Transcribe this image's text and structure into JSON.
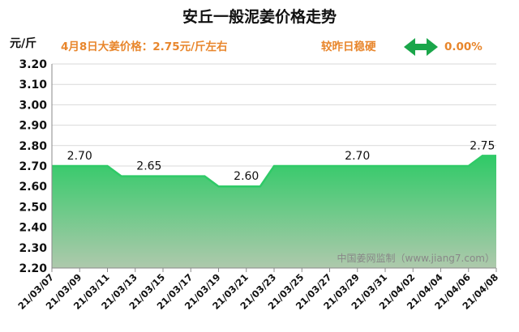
{
  "chart_data": {
    "type": "area",
    "title": "安丘一般泥姜价格走势",
    "ylabel": "元/斤",
    "xlabel": "",
    "ylim": [
      2.2,
      3.2
    ],
    "yticks": [
      "3.20",
      "3.10",
      "3.00",
      "2.90",
      "2.80",
      "2.70",
      "2.60",
      "2.50",
      "2.40",
      "2.30",
      "2.20"
    ],
    "ytick_values": [
      3.2,
      3.1,
      3.0,
      2.9,
      2.8,
      2.7,
      2.6,
      2.5,
      2.4,
      2.3,
      2.2
    ],
    "x": [
      "21/03/07",
      "21/03/08",
      "21/03/09",
      "21/03/10",
      "21/03/11",
      "21/03/12",
      "21/03/13",
      "21/03/14",
      "21/03/15",
      "21/03/16",
      "21/03/17",
      "21/03/18",
      "21/03/19",
      "21/03/20",
      "21/03/21",
      "21/03/22",
      "21/03/23",
      "21/03/24",
      "21/03/25",
      "21/03/26",
      "21/03/27",
      "21/03/28",
      "21/03/29",
      "21/03/30",
      "21/03/31",
      "21/04/01",
      "21/04/02",
      "21/04/03",
      "21/04/04",
      "21/04/05",
      "21/04/06",
      "21/04/07",
      "21/04/08"
    ],
    "xtick_labels": [
      "21/03/07",
      "21/03/09",
      "21/03/11",
      "21/03/13",
      "21/03/15",
      "21/03/17",
      "21/03/19",
      "21/03/21",
      "21/03/23",
      "21/03/25",
      "21/03/27",
      "21/03/29",
      "21/03/31",
      "21/04/02",
      "21/04/04",
      "21/04/06",
      "21/04/08"
    ],
    "series": [
      {
        "values": [
          2.7,
          2.7,
          2.7,
          2.7,
          2.7,
          2.65,
          2.65,
          2.65,
          2.65,
          2.65,
          2.65,
          2.65,
          2.6,
          2.6,
          2.6,
          2.6,
          2.7,
          2.7,
          2.7,
          2.7,
          2.7,
          2.7,
          2.7,
          2.7,
          2.7,
          2.7,
          2.7,
          2.7,
          2.7,
          2.7,
          2.7,
          2.75,
          2.75
        ],
        "line_color": "#2fca67",
        "fill_top_color": "#2fca67",
        "fill_bottom_color": "#aec9ac"
      }
    ],
    "data_labels": [
      {
        "x_index": 2,
        "value": 2.7,
        "text": "2.70"
      },
      {
        "x_index": 7,
        "value": 2.65,
        "text": "2.65"
      },
      {
        "x_index": 14,
        "value": 2.6,
        "text": "2.60"
      },
      {
        "x_index": 22,
        "value": 2.7,
        "text": "2.70"
      },
      {
        "x_index": 31,
        "value": 2.75,
        "text": "2.75"
      }
    ],
    "grid": true,
    "legend": "none"
  },
  "info": {
    "price_text": "4月8日大姜价格：2.75元/斤左右",
    "compare_text": "较昨日稳硬",
    "change_text": "0.00%",
    "arrow_icon": "double-arrow-icon",
    "accent_color": "#e8862c",
    "arrow_color": "#1aa64a"
  },
  "watermark": "中国姜网监制（www.jiang7.com）"
}
